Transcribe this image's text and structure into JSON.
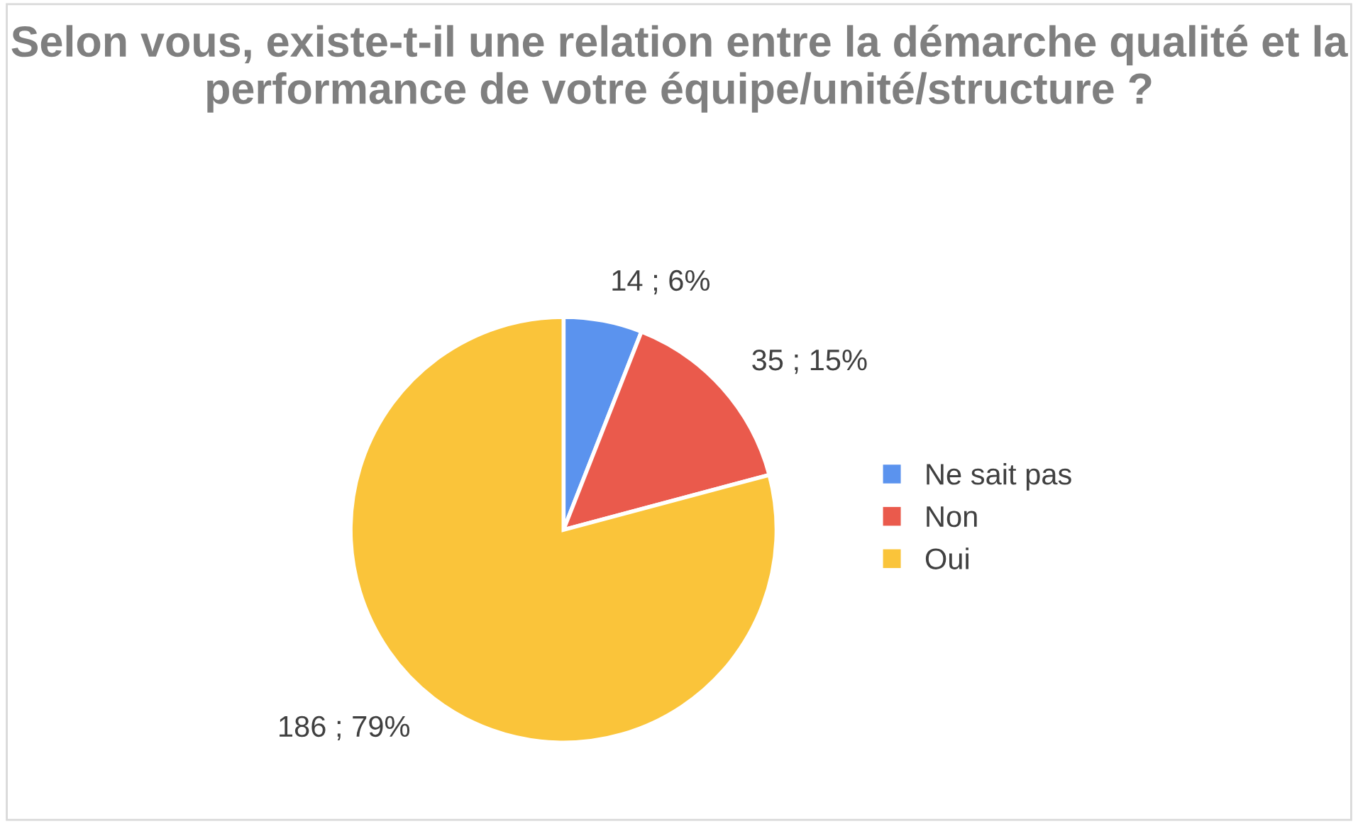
{
  "chart_data": {
    "type": "pie",
    "title": "Selon vous, existe-t-il une relation entre la démarche qualité et la performance de votre équipe/unité/structure ?",
    "categories": [
      "Ne sait pas",
      "Non",
      "Oui"
    ],
    "values": [
      14,
      35,
      186
    ],
    "colors": [
      "#5b93ee",
      "#ea5a4c",
      "#fac43a"
    ],
    "value_labels": [
      "14 ; 6%",
      "35 ; 15%",
      "186 ; 79%"
    ],
    "legend": "right"
  }
}
